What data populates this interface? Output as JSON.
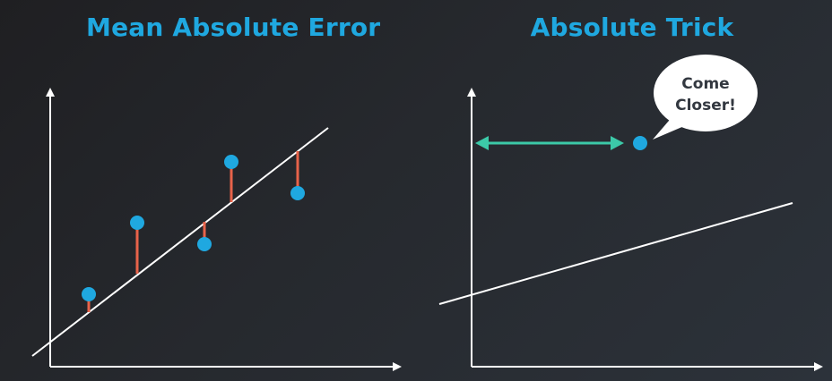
{
  "left_panel": {
    "title": "Mean Absolute Error"
  },
  "right_panel": {
    "title": "Absolute Trick",
    "speech_bubble": {
      "line1": "Come",
      "line2": "Closer!"
    }
  },
  "colors": {
    "title": "#1fa8e0",
    "point": "#1fa8e0",
    "error_segment": "#e8634a",
    "arrow": "#3cc9a8",
    "axis": "#ffffff",
    "background": "#26292e"
  }
}
